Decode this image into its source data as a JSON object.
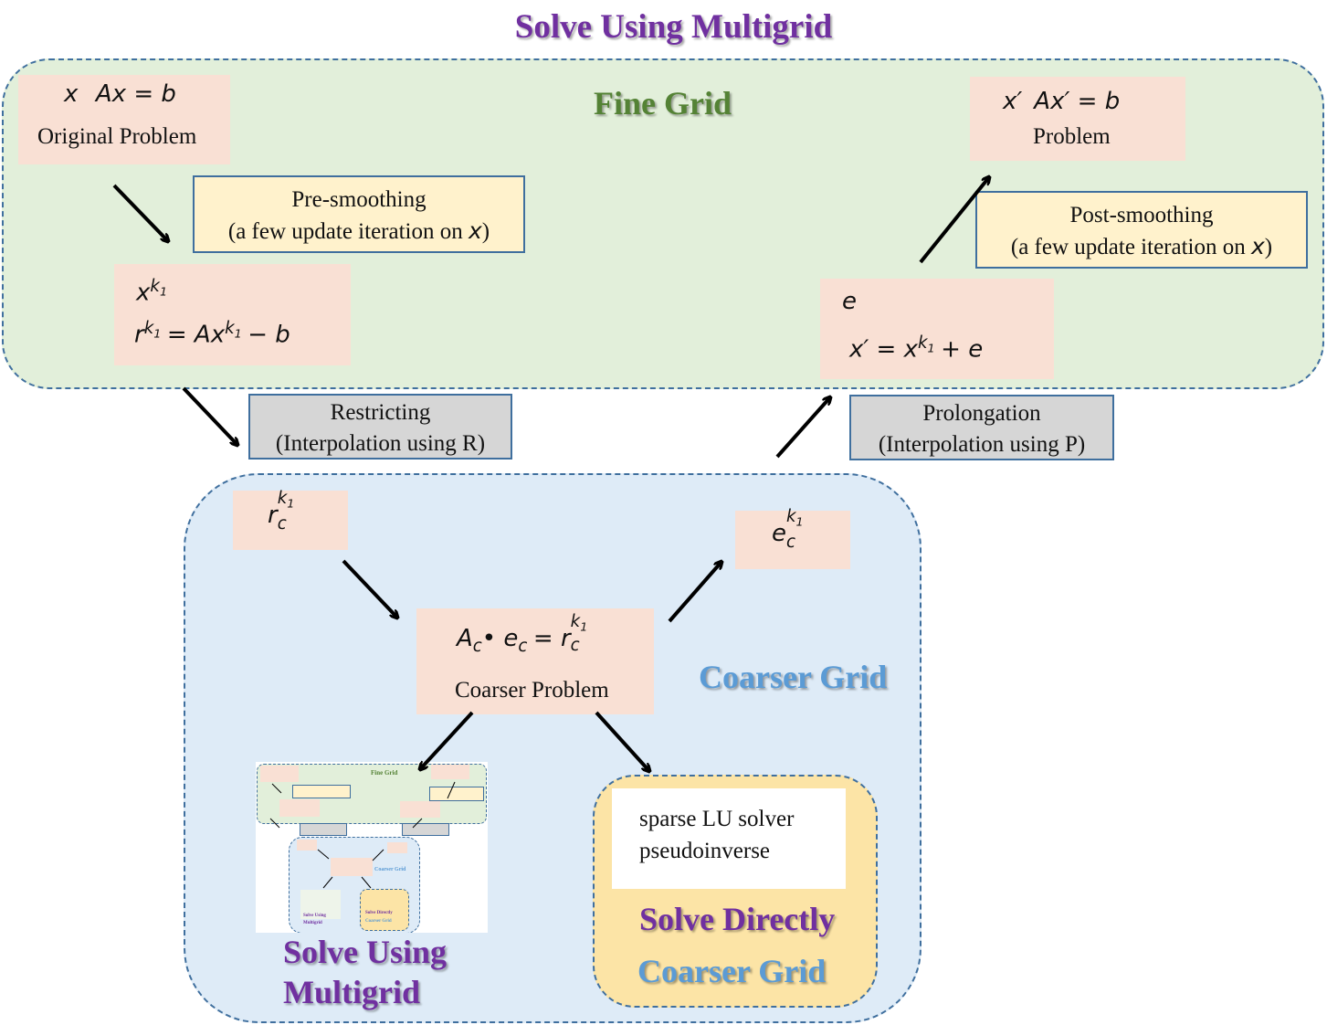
{
  "title": "Solve Using Multigrid",
  "fine_grid": {
    "label": "Fine Grid",
    "original": {
      "eq_var": "x",
      "eq": "Ax = b",
      "label": "Original Problem"
    },
    "presmooth": {
      "line1": "Pre-smoothing",
      "line2": "(a few update iteration on",
      "var": "x",
      "close": ")"
    },
    "residual": {
      "var": "x",
      "sup": "k",
      "subsup": "1",
      "eq": "r = Ax − b"
    },
    "update": {
      "e": "e",
      "eq": "x′ = x + e"
    },
    "postsmooth": {
      "line1": "Post-smoothing",
      "line2": "(a few update iteration on",
      "var": "x",
      "close": ")"
    },
    "problem": {
      "eq_var": "x′",
      "eq": "Ax′ = b",
      "label": "Problem"
    }
  },
  "restricting": {
    "line1": "Restricting",
    "line2": "(Interpolation using R)"
  },
  "prolongation": {
    "line1": "Prolongation",
    "line2": "(Interpolation using P)"
  },
  "coarse_grid": {
    "label": "Coarser Grid",
    "rc": "r",
    "ec": "e",
    "coarse_problem": {
      "eq": "A • e = r",
      "label": "Coarser Problem"
    },
    "solve_multigrid_line1": "Solve Using",
    "solve_multigrid_line2": "Multigrid",
    "solve_directly": {
      "methods": [
        "sparse LU solver",
        "pseudoinverse"
      ],
      "label": "Solve Directly",
      "grid_label": "Coarser Grid"
    }
  },
  "colors": {
    "purple": "#7030a0",
    "green": "#548235",
    "blue": "#5b9bd5",
    "fine_bg": "#e2efda",
    "coarse_bg": "#deebf7",
    "direct_bg": "#fce4a6"
  }
}
